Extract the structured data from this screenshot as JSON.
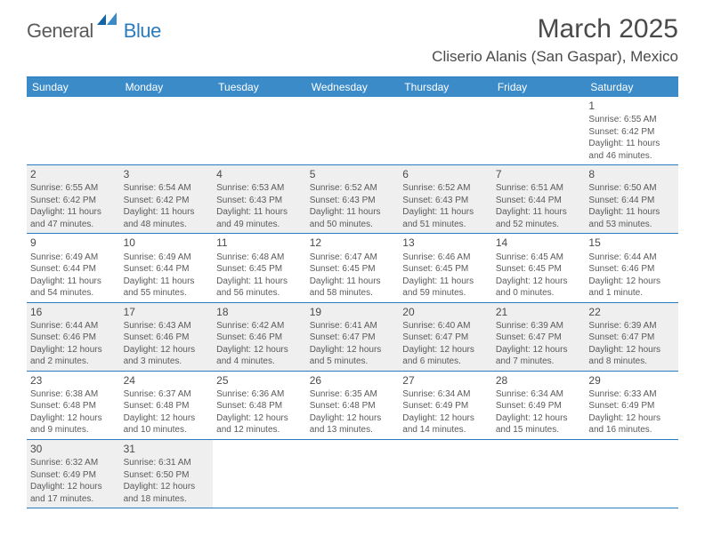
{
  "logo": {
    "general": "General",
    "blue": "Blue"
  },
  "title": "March 2025",
  "location": "Cliserio Alanis (San Gaspar), Mexico",
  "colors": {
    "header_bg": "#3b8bc9",
    "border": "#2b7bbf",
    "shade": "#efefef",
    "text": "#4a4a4a",
    "logo_blue": "#2b7bbf"
  },
  "weekdays": [
    "Sunday",
    "Monday",
    "Tuesday",
    "Wednesday",
    "Thursday",
    "Friday",
    "Saturday"
  ],
  "weeks": [
    [
      {
        "empty": true
      },
      {
        "empty": true
      },
      {
        "empty": true
      },
      {
        "empty": true
      },
      {
        "empty": true
      },
      {
        "empty": true
      },
      {
        "n": "1",
        "sr": "6:55 AM",
        "ss": "6:42 PM",
        "dl": "11 hours and 46 minutes."
      }
    ],
    [
      {
        "n": "2",
        "sr": "6:55 AM",
        "ss": "6:42 PM",
        "dl": "11 hours and 47 minutes.",
        "shade": true
      },
      {
        "n": "3",
        "sr": "6:54 AM",
        "ss": "6:42 PM",
        "dl": "11 hours and 48 minutes.",
        "shade": true
      },
      {
        "n": "4",
        "sr": "6:53 AM",
        "ss": "6:43 PM",
        "dl": "11 hours and 49 minutes.",
        "shade": true
      },
      {
        "n": "5",
        "sr": "6:52 AM",
        "ss": "6:43 PM",
        "dl": "11 hours and 50 minutes.",
        "shade": true
      },
      {
        "n": "6",
        "sr": "6:52 AM",
        "ss": "6:43 PM",
        "dl": "11 hours and 51 minutes.",
        "shade": true
      },
      {
        "n": "7",
        "sr": "6:51 AM",
        "ss": "6:44 PM",
        "dl": "11 hours and 52 minutes.",
        "shade": true
      },
      {
        "n": "8",
        "sr": "6:50 AM",
        "ss": "6:44 PM",
        "dl": "11 hours and 53 minutes.",
        "shade": true
      }
    ],
    [
      {
        "n": "9",
        "sr": "6:49 AM",
        "ss": "6:44 PM",
        "dl": "11 hours and 54 minutes."
      },
      {
        "n": "10",
        "sr": "6:49 AM",
        "ss": "6:44 PM",
        "dl": "11 hours and 55 minutes."
      },
      {
        "n": "11",
        "sr": "6:48 AM",
        "ss": "6:45 PM",
        "dl": "11 hours and 56 minutes."
      },
      {
        "n": "12",
        "sr": "6:47 AM",
        "ss": "6:45 PM",
        "dl": "11 hours and 58 minutes."
      },
      {
        "n": "13",
        "sr": "6:46 AM",
        "ss": "6:45 PM",
        "dl": "11 hours and 59 minutes."
      },
      {
        "n": "14",
        "sr": "6:45 AM",
        "ss": "6:45 PM",
        "dl": "12 hours and 0 minutes."
      },
      {
        "n": "15",
        "sr": "6:44 AM",
        "ss": "6:46 PM",
        "dl": "12 hours and 1 minute."
      }
    ],
    [
      {
        "n": "16",
        "sr": "6:44 AM",
        "ss": "6:46 PM",
        "dl": "12 hours and 2 minutes.",
        "shade": true
      },
      {
        "n": "17",
        "sr": "6:43 AM",
        "ss": "6:46 PM",
        "dl": "12 hours and 3 minutes.",
        "shade": true
      },
      {
        "n": "18",
        "sr": "6:42 AM",
        "ss": "6:46 PM",
        "dl": "12 hours and 4 minutes.",
        "shade": true
      },
      {
        "n": "19",
        "sr": "6:41 AM",
        "ss": "6:47 PM",
        "dl": "12 hours and 5 minutes.",
        "shade": true
      },
      {
        "n": "20",
        "sr": "6:40 AM",
        "ss": "6:47 PM",
        "dl": "12 hours and 6 minutes.",
        "shade": true
      },
      {
        "n": "21",
        "sr": "6:39 AM",
        "ss": "6:47 PM",
        "dl": "12 hours and 7 minutes.",
        "shade": true
      },
      {
        "n": "22",
        "sr": "6:39 AM",
        "ss": "6:47 PM",
        "dl": "12 hours and 8 minutes.",
        "shade": true
      }
    ],
    [
      {
        "n": "23",
        "sr": "6:38 AM",
        "ss": "6:48 PM",
        "dl": "12 hours and 9 minutes."
      },
      {
        "n": "24",
        "sr": "6:37 AM",
        "ss": "6:48 PM",
        "dl": "12 hours and 10 minutes."
      },
      {
        "n": "25",
        "sr": "6:36 AM",
        "ss": "6:48 PM",
        "dl": "12 hours and 12 minutes."
      },
      {
        "n": "26",
        "sr": "6:35 AM",
        "ss": "6:48 PM",
        "dl": "12 hours and 13 minutes."
      },
      {
        "n": "27",
        "sr": "6:34 AM",
        "ss": "6:49 PM",
        "dl": "12 hours and 14 minutes."
      },
      {
        "n": "28",
        "sr": "6:34 AM",
        "ss": "6:49 PM",
        "dl": "12 hours and 15 minutes."
      },
      {
        "n": "29",
        "sr": "6:33 AM",
        "ss": "6:49 PM",
        "dl": "12 hours and 16 minutes."
      }
    ],
    [
      {
        "n": "30",
        "sr": "6:32 AM",
        "ss": "6:49 PM",
        "dl": "12 hours and 17 minutes.",
        "shade": true
      },
      {
        "n": "31",
        "sr": "6:31 AM",
        "ss": "6:50 PM",
        "dl": "12 hours and 18 minutes.",
        "shade": true
      },
      {
        "empty": true
      },
      {
        "empty": true
      },
      {
        "empty": true
      },
      {
        "empty": true
      },
      {
        "empty": true
      }
    ]
  ],
  "labels": {
    "sunrise": "Sunrise:",
    "sunset": "Sunset:",
    "daylight": "Daylight:"
  }
}
